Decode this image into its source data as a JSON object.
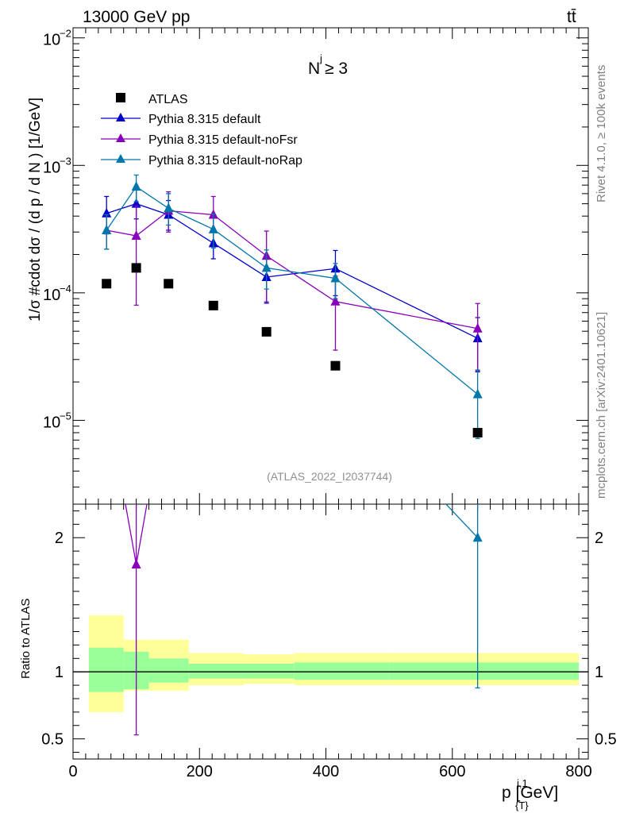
{
  "header": {
    "energy_label": "13000 GeV pp",
    "process_label": "tt̄"
  },
  "side_labels": {
    "rivet": "Rivet 4.1.0, ≥ 100k events",
    "mcplots": "mcplots.cern.ch [arXiv:2401.10621]"
  },
  "annotation": {
    "njets": "N  ≥ 3",
    "njets_sup": "j",
    "analysis_id": "(ATLAS_2022_I2037744)"
  },
  "axis_labels": {
    "y_main": "1/σ #cdot dσ / (d p  / d N ) [1/GeV]",
    "y_ratio": "Ratio to ATLAS",
    "x": "p   [GeV]"
  },
  "chart_data": {
    "type": "scatter",
    "title": "N^j ≥ 3",
    "x_unit": "GeV",
    "xlim": [
      0,
      815
    ],
    "main": {
      "ylog": true,
      "ylim": [
        2.2e-06,
        0.012
      ],
      "y_ticks": [
        {
          "value": 1e-05,
          "base": "10",
          "exp": "−5"
        },
        {
          "value": 0.0001,
          "base": "10",
          "exp": "−4"
        },
        {
          "value": 0.001,
          "base": "10",
          "exp": "−3"
        },
        {
          "value": 0.01,
          "base": "10",
          "exp": "−2"
        }
      ]
    },
    "ratio": {
      "ylim": [
        0.35,
        2.25
      ],
      "y_ticks": [
        {
          "value": 0.5,
          "label": "0.5"
        },
        {
          "value": 1,
          "label": "1"
        },
        {
          "value": 2,
          "label": "2"
        }
      ]
    },
    "x_ticks": [
      {
        "value": 0,
        "label": "0"
      },
      {
        "value": 200,
        "label": "200"
      },
      {
        "value": 400,
        "label": "400"
      },
      {
        "value": 600,
        "label": "600"
      },
      {
        "value": 800,
        "label": "800"
      }
    ],
    "data_series": {
      "name": "ATLAS",
      "x": [
        53,
        100,
        151,
        222,
        306,
        415,
        640
      ],
      "y": [
        0.000118,
        0.000157,
        0.000118,
        7.95e-05,
        4.95e-05,
        2.68e-05,
        8e-06
      ],
      "bins": [
        [
          25,
          80
        ],
        [
          80,
          120
        ],
        [
          120,
          183
        ],
        [
          183,
          270
        ],
        [
          270,
          350
        ],
        [
          350,
          500
        ],
        [
          500,
          800
        ]
      ],
      "stat_band": [
        [
          0.85,
          1.18
        ],
        [
          0.87,
          1.15
        ],
        [
          0.92,
          1.1
        ],
        [
          0.95,
          1.06
        ],
        [
          0.95,
          1.06
        ],
        [
          0.94,
          1.07
        ],
        [
          0.94,
          1.07
        ]
      ],
      "total_band": [
        [
          0.7,
          1.42
        ],
        [
          0.86,
          1.24
        ],
        [
          0.86,
          1.24
        ],
        [
          0.9,
          1.14
        ],
        [
          0.91,
          1.13
        ],
        [
          0.9,
          1.14
        ],
        [
          0.9,
          1.14
        ]
      ]
    },
    "series": [
      {
        "name": "Pythia 8.315 default",
        "color": "#0000cc",
        "x": [
          53,
          100,
          151,
          222,
          306,
          415,
          640
        ],
        "y": [
          0.00042,
          0.0005,
          0.00041,
          0.000245,
          0.000133,
          0.000155,
          4.4e-05
        ],
        "err": [
          [
            0.00013,
            0.00015
          ],
          [
            0.00012,
            0.00014
          ],
          [
            0.0001,
            0.00012
          ],
          [
            6e-05,
            7e-05
          ],
          [
            5e-05,
            6e-05
          ],
          [
            6e-05,
            6e-05
          ],
          [
            2e-05,
            2e-05
          ]
        ]
      },
      {
        "name": "Pythia 8.315 default-noFsr",
        "color": "#8800bb",
        "x": [
          53,
          100,
          151,
          222,
          306,
          415,
          640
        ],
        "y": [
          0.00031,
          0.00028,
          0.00044,
          0.00041,
          0.000195,
          8.55e-05,
          5.25e-05
        ],
        "err": [
          [
            9e-05,
            0.0001
          ],
          [
            0.0002,
            0.0002
          ],
          [
            0.00014,
            0.00018
          ],
          [
            0.00011,
            0.00016
          ],
          [
            0.00011,
            0.00011
          ],
          [
            5e-05,
            5e-05
          ],
          [
            2.8e-05,
            3e-05
          ]
        ],
        "ratio": [
          {
            "x": 100,
            "y": 1.8,
            "err": [
              1.27,
              2.5
            ]
          }
        ]
      },
      {
        "name": "Pythia 8.315 default-noRap",
        "color": "#0077aa",
        "x": [
          53,
          100,
          151,
          222,
          306,
          415,
          640
        ],
        "y": [
          0.00031,
          0.00068,
          0.00046,
          0.000315,
          0.000157,
          0.00013,
          1.6e-05
        ],
        "err": [
          [
            9e-05,
            0.0001
          ],
          [
            0.00016,
            0.00016
          ],
          [
            0.00012,
            0.00014
          ],
          [
            9e-05,
            0.0001
          ],
          [
            5e-05,
            6e-05
          ],
          [
            4e-05,
            4e-05
          ],
          [
            8.8e-06,
            8.8e-06
          ]
        ],
        "ratio": [
          {
            "x": 640,
            "y": 2.0,
            "err": [
              1.12,
              1.4
            ]
          }
        ]
      }
    ]
  },
  "legend": {
    "items": [
      {
        "label": "ATLAS"
      },
      {
        "label": "Pythia 8.315 default"
      },
      {
        "label": "Pythia 8.315 default-noFsr"
      },
      {
        "label": "Pythia 8.315 default-noRap"
      }
    ]
  }
}
